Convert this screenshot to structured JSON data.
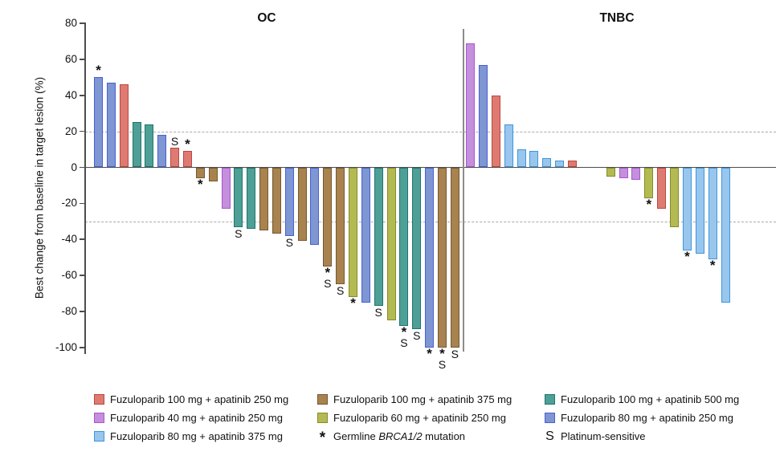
{
  "chart_data": {
    "type": "bar",
    "subtype": "waterfall",
    "title": "",
    "xlabel": "",
    "ylabel": "Best change from baseline in target lesion (%)",
    "ylim": [
      -100,
      80
    ],
    "yticks": [
      80,
      60,
      40,
      20,
      0,
      -20,
      -40,
      -60,
      -80,
      -100
    ],
    "reference_lines": [
      20,
      -30
    ],
    "grid": false,
    "legend_position": "bottom",
    "mark_meanings": {
      "*": "Germline BRCA1/2 mutation",
      "S": "Platinum-sensitive"
    },
    "regimens": {
      "F100A250": {
        "label": "Fuzuloparib 100 mg + apatinib 250 mg",
        "fill": "#DD7B72",
        "border": "#C0453D"
      },
      "F100A375": {
        "label": "Fuzuloparib 100 mg + apatinib 375 mg",
        "fill": "#A8824F",
        "border": "#75592F"
      },
      "F100A500": {
        "label": "Fuzuloparib 100 mg + apatinib 500 mg",
        "fill": "#4E9F96",
        "border": "#1F756C"
      },
      "F40A250": {
        "label": "Fuzuloparib 40 mg + apatinib 250 mg",
        "fill": "#C48FDC",
        "border": "#AA56CE"
      },
      "F60A250": {
        "label": "Fuzuloparib 60 mg + apatinib 250 mg",
        "fill": "#B4BA52",
        "border": "#838C2B"
      },
      "F80A250": {
        "label": "Fuzuloparib 80 mg + apatinib 250 mg",
        "fill": "#7E96D2",
        "border": "#4A5ED6"
      },
      "F80A375": {
        "label": "Fuzuloparib 80 mg + apatinib 375 mg",
        "fill": "#99C6ED",
        "border": "#3E96DC"
      }
    },
    "groups": [
      {
        "name": "OC",
        "bars": [
          {
            "value": 50,
            "regimen": "F80A250",
            "marks": [
              "*"
            ]
          },
          {
            "value": 47,
            "regimen": "F80A250",
            "marks": []
          },
          {
            "value": 46,
            "regimen": "F100A250",
            "marks": []
          },
          {
            "value": 25,
            "regimen": "F100A500",
            "marks": []
          },
          {
            "value": 24,
            "regimen": "F100A500",
            "marks": []
          },
          {
            "value": 18,
            "regimen": "F80A250",
            "marks": []
          },
          {
            "value": 11,
            "regimen": "F100A250",
            "marks": [
              "S"
            ]
          },
          {
            "value": 9,
            "regimen": "F100A250",
            "marks": [
              "*"
            ]
          },
          {
            "value": -6,
            "regimen": "F100A375",
            "marks": [
              "*"
            ]
          },
          {
            "value": -8,
            "regimen": "F100A375",
            "marks": []
          },
          {
            "value": -23,
            "regimen": "F40A250",
            "marks": []
          },
          {
            "value": -33,
            "regimen": "F100A500",
            "marks": [
              "S"
            ]
          },
          {
            "value": -34,
            "regimen": "F100A500",
            "marks": []
          },
          {
            "value": -35,
            "regimen": "F100A375",
            "marks": []
          },
          {
            "value": -37,
            "regimen": "F100A375",
            "marks": []
          },
          {
            "value": -38,
            "regimen": "F80A250",
            "marks": [
              "S"
            ]
          },
          {
            "value": -41,
            "regimen": "F100A375",
            "marks": []
          },
          {
            "value": -43,
            "regimen": "F80A250",
            "marks": []
          },
          {
            "value": -55,
            "regimen": "F100A375",
            "marks": [
              "*",
              "S"
            ]
          },
          {
            "value": -65,
            "regimen": "F100A375",
            "marks": [
              "S"
            ]
          },
          {
            "value": -72,
            "regimen": "F60A250",
            "marks": [
              "*"
            ]
          },
          {
            "value": -75,
            "regimen": "F80A250",
            "marks": []
          },
          {
            "value": -77,
            "regimen": "F100A500",
            "marks": [
              "S"
            ]
          },
          {
            "value": -85,
            "regimen": "F60A250",
            "marks": []
          },
          {
            "value": -88,
            "regimen": "F100A500",
            "marks": [
              "*",
              "S"
            ]
          },
          {
            "value": -90,
            "regimen": "F100A500",
            "marks": [
              "S"
            ]
          },
          {
            "value": -100,
            "regimen": "F80A250",
            "marks": [
              "*"
            ]
          },
          {
            "value": -100,
            "regimen": "F100A375",
            "marks": [
              "*",
              "S"
            ]
          },
          {
            "value": -100,
            "regimen": "F100A375",
            "marks": [
              "S"
            ]
          }
        ]
      },
      {
        "name": "TNBC",
        "bars": [
          {
            "value": 69,
            "regimen": "F40A250",
            "marks": []
          },
          {
            "value": 57,
            "regimen": "F80A250",
            "marks": []
          },
          {
            "value": 40,
            "regimen": "F100A250",
            "marks": []
          },
          {
            "value": 24,
            "regimen": "F80A375",
            "marks": []
          },
          {
            "value": 10,
            "regimen": "F80A375",
            "marks": []
          },
          {
            "value": 9,
            "regimen": "F80A375",
            "marks": []
          },
          {
            "value": 5,
            "regimen": "F80A375",
            "marks": []
          },
          {
            "value": 4,
            "regimen": "F80A375",
            "marks": []
          },
          {
            "value": 4,
            "regimen": "F100A250",
            "marks": []
          },
          {
            "value": -5,
            "regimen": "F60A250",
            "marks": []
          },
          {
            "value": -6,
            "regimen": "F40A250",
            "marks": []
          },
          {
            "value": -7,
            "regimen": "F40A250",
            "marks": []
          },
          {
            "value": -17,
            "regimen": "F60A250",
            "marks": [
              "*"
            ]
          },
          {
            "value": -23,
            "regimen": "F100A250",
            "marks": []
          },
          {
            "value": -33,
            "regimen": "F60A250",
            "marks": []
          },
          {
            "value": -46,
            "regimen": "F80A375",
            "marks": [
              "*"
            ]
          },
          {
            "value": -48,
            "regimen": "F80A375",
            "marks": []
          },
          {
            "value": -51,
            "regimen": "F80A375",
            "marks": [
              "*"
            ]
          },
          {
            "value": -75,
            "regimen": "F80A375",
            "marks": []
          }
        ]
      }
    ],
    "legend_rows": [
      [
        {
          "key": "F100A250"
        },
        {
          "key": "F100A375"
        },
        {
          "key": "F100A500"
        }
      ],
      [
        {
          "key": "F40A250"
        },
        {
          "key": "F60A250"
        },
        {
          "key": "F80A250"
        }
      ],
      [
        {
          "key": "F80A375"
        },
        {
          "symbol": "*",
          "label_prefix": "Germline ",
          "label_italic": "BRCA1/2",
          "label_suffix": " mutation"
        },
        {
          "symbol": "S",
          "label": "Platinum-sensitive"
        }
      ]
    ]
  }
}
